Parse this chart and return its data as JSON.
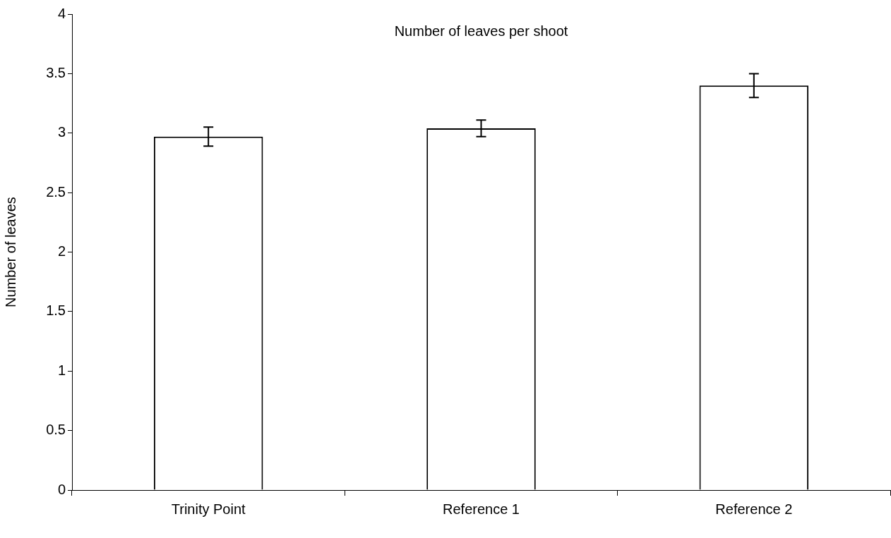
{
  "chart_data": {
    "type": "bar",
    "title": "Number of leaves per shoot",
    "ylabel": "Number of leaves",
    "categories": [
      "Trinity Point",
      "Reference 1",
      "Reference 2"
    ],
    "values": [
      2.97,
      3.04,
      3.4
    ],
    "errors": [
      0.08,
      0.07,
      0.1
    ],
    "color": "#ffffff",
    "ylim": [
      0,
      4
    ],
    "yticks": [
      0,
      0.5,
      1,
      1.5,
      2,
      2.5,
      3,
      3.5,
      4
    ],
    "grid": false,
    "legend": false
  }
}
